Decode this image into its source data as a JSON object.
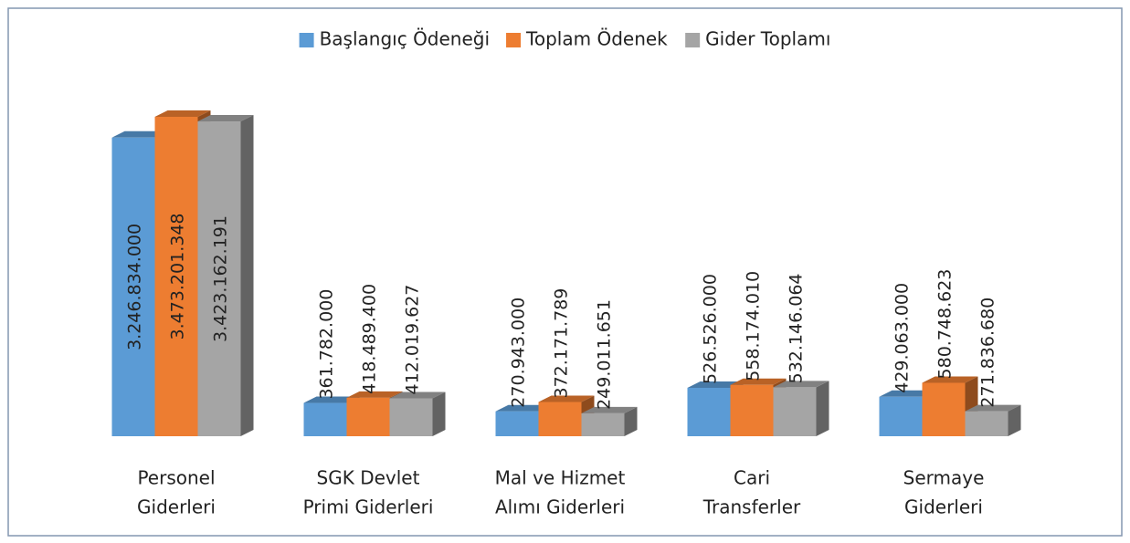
{
  "chart_data": {
    "type": "bar3d",
    "categories": [
      [
        "Personel",
        "Giderleri"
      ],
      [
        "SGK Devlet",
        "Primi Giderleri"
      ],
      [
        "Mal ve Hizmet",
        "Alımı Giderleri"
      ],
      [
        "Cari",
        "Transferler"
      ],
      [
        "Sermaye",
        "Giderleri"
      ]
    ],
    "series": [
      {
        "name": "Başlangıç Ödeneği",
        "color": "#5b9bd5",
        "values": [
          3246834000,
          361782000,
          270943000,
          526526000,
          429063000
        ],
        "value_labels": [
          "3.246.834.000",
          "361.782.000",
          "270.943.000",
          "526.526.000",
          "429.063.000"
        ]
      },
      {
        "name": "Toplam Ödenek",
        "color": "#ed7d31",
        "values": [
          3473201348,
          418489400,
          372171789,
          558174010,
          580748623
        ],
        "value_labels": [
          "3.473.201.348",
          "418.489.400",
          "372.171.789",
          "558.174.010",
          "580.748.623"
        ]
      },
      {
        "name": "Gider Toplamı",
        "color": "#a5a5a5",
        "values": [
          3423162191,
          412019627,
          249011651,
          532146064,
          271836680
        ],
        "value_labels": [
          "3.423.162.191",
          "412.019.627",
          "249.011.651",
          "532.146.064",
          "271.836.680"
        ]
      }
    ],
    "legend": "top"
  }
}
